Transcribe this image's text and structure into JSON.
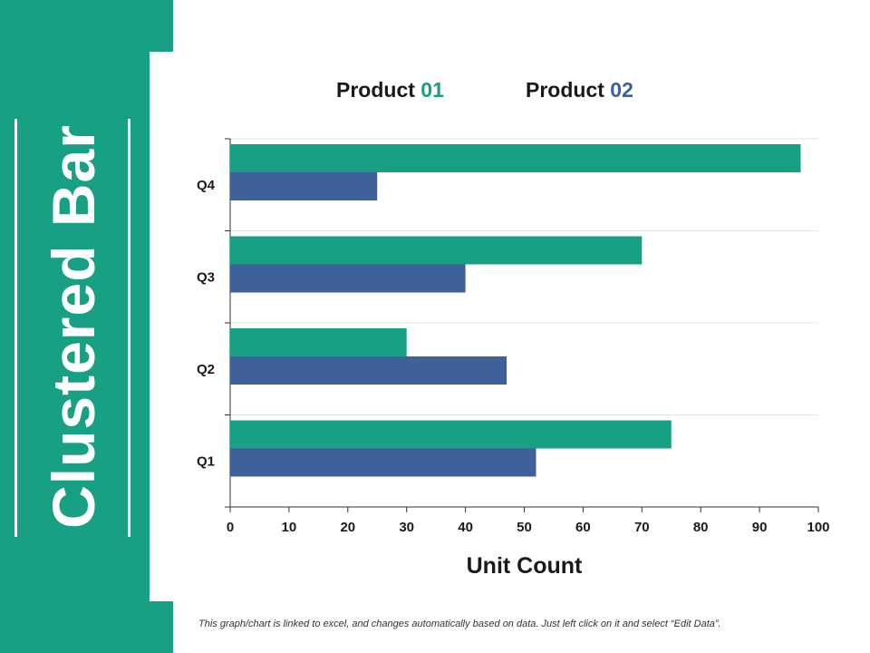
{
  "title": "Clustered Bar",
  "legend": [
    {
      "prefix": "Product ",
      "suffix": "01",
      "color": "#18a085"
    },
    {
      "prefix": "Product ",
      "suffix": "02",
      "color": "#3e6199"
    }
  ],
  "footer": "This graph/chart is linked to excel, and changes automatically based on data. Just left click on it and select “Edit Data”.",
  "colors": {
    "sidebar": "#18a085",
    "grid": "#e4e4d8",
    "axis": "#333333"
  },
  "chart_data": {
    "type": "bar",
    "orientation": "horizontal",
    "categories": [
      "Q1",
      "Q2",
      "Q3",
      "Q4"
    ],
    "series": [
      {
        "name": "Product 01",
        "color": "#18a085",
        "values": [
          75,
          30,
          70,
          97
        ]
      },
      {
        "name": "Product 02",
        "color": "#3e6199",
        "values": [
          52,
          47,
          40,
          25
        ]
      }
    ],
    "xlabel": "Unit Count",
    "ylabel": "",
    "xlim": [
      0,
      100
    ],
    "xticks": [
      0,
      10,
      20,
      30,
      40,
      50,
      60,
      70,
      80,
      90,
      100
    ],
    "grid": true,
    "legend_position": "top"
  }
}
